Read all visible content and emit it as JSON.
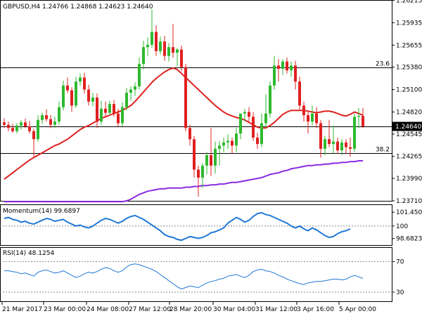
{
  "chart_data": [
    {
      "type": "candlestick",
      "title": "GBPUSD,H4 1.24766 1.24868 1.24623 1.24640",
      "ylim": [
        1.2371,
        1.2621
      ],
      "y_ticks": [
        "1.26215",
        "1.25935",
        "1.25655",
        "1.25380",
        "1.25100",
        "1.24820",
        "1.24545",
        "1.24265",
        "1.23990",
        "1.23710"
      ],
      "y_tick_values": [
        1.26215,
        1.25935,
        1.25655,
        1.2538,
        1.251,
        1.2482,
        1.24545,
        1.24265,
        1.2399,
        1.2371
      ],
      "x_ticks": [
        "21 Mar 2017",
        "23 Mar 00:00",
        "24 Mar 08:00",
        "27 Mar 12:00",
        "28 Mar 20:00",
        "30 Mar 04:00",
        "31 Mar 12:00",
        "3 Apr 16:00",
        "5 Apr 00:00"
      ],
      "current_price_label": "1.24640",
      "current_price": 1.2464,
      "horizontal_lines": [
        {
          "label": "23.6",
          "value": 1.2538
        },
        {
          "label": "",
          "value": 1.2464
        },
        {
          "label": "38.2",
          "value": 1.2431
        }
      ],
      "candles": [
        [
          1.2469,
          1.2474,
          1.2462,
          1.2466
        ],
        [
          1.2466,
          1.247,
          1.2458,
          1.2462
        ],
        [
          1.2462,
          1.2467,
          1.2456,
          1.2458
        ],
        [
          1.2458,
          1.2468,
          1.2455,
          1.2465
        ],
        [
          1.2465,
          1.2472,
          1.246,
          1.2469
        ],
        [
          1.2469,
          1.2474,
          1.2462,
          1.2464
        ],
        [
          1.2464,
          1.2471,
          1.2455,
          1.2458
        ],
        [
          1.2458,
          1.2461,
          1.2426,
          1.2448
        ],
        [
          1.2448,
          1.2478,
          1.2445,
          1.2472
        ],
        [
          1.2472,
          1.2481,
          1.2467,
          1.2478
        ],
        [
          1.2478,
          1.2485,
          1.247,
          1.2473
        ],
        [
          1.2473,
          1.2478,
          1.2462,
          1.2466
        ],
        [
          1.2466,
          1.2476,
          1.2462,
          1.247
        ],
        [
          1.247,
          1.2495,
          1.2466,
          1.2488
        ],
        [
          1.2488,
          1.2521,
          1.2484,
          1.2515
        ],
        [
          1.2515,
          1.2525,
          1.2506,
          1.2509
        ],
        [
          1.2509,
          1.2513,
          1.2482,
          1.249
        ],
        [
          1.249,
          1.2526,
          1.2487,
          1.252
        ],
        [
          1.252,
          1.253,
          1.2515,
          1.2525
        ],
        [
          1.2525,
          1.2531,
          1.2505,
          1.251
        ],
        [
          1.251,
          1.2516,
          1.249,
          1.2495
        ],
        [
          1.2495,
          1.2506,
          1.2489,
          1.25
        ],
        [
          1.25,
          1.2505,
          1.2462,
          1.247
        ],
        [
          1.247,
          1.2496,
          1.2466,
          1.2486
        ],
        [
          1.2486,
          1.2495,
          1.2476,
          1.2481
        ],
        [
          1.2481,
          1.2496,
          1.2478,
          1.2492
        ],
        [
          1.2492,
          1.2497,
          1.2476,
          1.248
        ],
        [
          1.248,
          1.2486,
          1.2464,
          1.2468
        ],
        [
          1.2468,
          1.2494,
          1.2464,
          1.2488
        ],
        [
          1.2488,
          1.2512,
          1.2484,
          1.2506
        ],
        [
          1.2506,
          1.2514,
          1.2496,
          1.251
        ],
        [
          1.251,
          1.2519,
          1.2502,
          1.2514
        ],
        [
          1.2514,
          1.255,
          1.251,
          1.2542
        ],
        [
          1.2542,
          1.2571,
          1.2535,
          1.2563
        ],
        [
          1.2563,
          1.2575,
          1.2552,
          1.2566
        ],
        [
          1.2566,
          1.261,
          1.2562,
          1.2582
        ],
        [
          1.2582,
          1.259,
          1.2552,
          1.2558
        ],
        [
          1.2558,
          1.2576,
          1.2554,
          1.257
        ],
        [
          1.257,
          1.2577,
          1.2546,
          1.2552
        ],
        [
          1.2552,
          1.2568,
          1.2545,
          1.2563
        ],
        [
          1.2563,
          1.2592,
          1.255,
          1.2556
        ],
        [
          1.2556,
          1.2562,
          1.2539,
          1.256
        ],
        [
          1.256,
          1.2565,
          1.2533,
          1.2538
        ],
        [
          1.2538,
          1.2542,
          1.2458,
          1.2462
        ],
        [
          1.2462,
          1.2466,
          1.244,
          1.2448
        ],
        [
          1.2448,
          1.2452,
          1.24,
          1.241
        ],
        [
          1.241,
          1.2415,
          1.2376,
          1.24
        ],
        [
          1.24,
          1.2418,
          1.2387,
          1.2415
        ],
        [
          1.2415,
          1.2432,
          1.2404,
          1.2428
        ],
        [
          1.2428,
          1.2462,
          1.2402,
          1.2415
        ],
        [
          1.2415,
          1.2445,
          1.2405,
          1.2436
        ],
        [
          1.2436,
          1.2446,
          1.2415,
          1.244
        ],
        [
          1.244,
          1.245,
          1.2432,
          1.2444
        ],
        [
          1.2444,
          1.2454,
          1.2436,
          1.2446
        ],
        [
          1.2446,
          1.245,
          1.243,
          1.244
        ],
        [
          1.244,
          1.2462,
          1.2432,
          1.2455
        ],
        [
          1.2455,
          1.248,
          1.2448,
          1.248
        ],
        [
          1.248,
          1.2486,
          1.247,
          1.2482
        ],
        [
          1.2482,
          1.2488,
          1.247,
          1.2476
        ],
        [
          1.2476,
          1.2482,
          1.2446,
          1.245
        ],
        [
          1.245,
          1.2456,
          1.2436,
          1.2442
        ],
        [
          1.2442,
          1.248,
          1.2438,
          1.2468
        ],
        [
          1.2468,
          1.2504,
          1.2462,
          1.248
        ],
        [
          1.248,
          1.252,
          1.2475,
          1.2515
        ],
        [
          1.2515,
          1.2552,
          1.251,
          1.254
        ],
        [
          1.254,
          1.2548,
          1.252,
          1.2536
        ],
        [
          1.2536,
          1.2548,
          1.2528,
          1.2545
        ],
        [
          1.2545,
          1.255,
          1.253,
          1.2534
        ],
        [
          1.2534,
          1.2545,
          1.2526,
          1.254
        ],
        [
          1.254,
          1.2546,
          1.251,
          1.252
        ],
        [
          1.252,
          1.2526,
          1.2485,
          1.249
        ],
        [
          1.249,
          1.2495,
          1.247,
          1.2478
        ],
        [
          1.2478,
          1.2482,
          1.2455,
          1.247
        ],
        [
          1.247,
          1.249,
          1.2465,
          1.248
        ],
        [
          1.248,
          1.2488,
          1.2462,
          1.2468
        ],
        [
          1.2468,
          1.2472,
          1.2425,
          1.2436
        ],
        [
          1.2436,
          1.2452,
          1.2428,
          1.2448
        ],
        [
          1.2448,
          1.2472,
          1.2438,
          1.2442
        ],
        [
          1.2442,
          1.2465,
          1.243,
          1.2445
        ],
        [
          1.2445,
          1.245,
          1.243,
          1.2434
        ],
        [
          1.2434,
          1.2448,
          1.2428,
          1.2444
        ],
        [
          1.2444,
          1.2448,
          1.243,
          1.2438
        ],
        [
          1.2438,
          1.245,
          1.2426,
          1.2436
        ],
        [
          1.2436,
          1.248,
          1.2432,
          1.2476
        ],
        [
          1.2476,
          1.2487,
          1.2462,
          1.2477
        ],
        [
          1.2477,
          1.2487,
          1.2462,
          1.2464
        ]
      ],
      "series": [
        {
          "name": "",
          "color": "#e02020",
          "values": [
            1.2398,
            1.2402,
            1.2406,
            1.241,
            1.2414,
            1.2418,
            1.2422,
            1.2425,
            1.2428,
            1.2431,
            1.2434,
            1.2437,
            1.244,
            1.2442,
            1.2445,
            1.2448,
            1.2452,
            1.2456,
            1.246,
            1.2463,
            1.2465,
            1.2468,
            1.2471,
            1.2474,
            1.2476,
            1.2478,
            1.248,
            1.2482,
            1.2484,
            1.2487,
            1.249,
            1.2495,
            1.2501,
            1.2507,
            1.2513,
            1.2519,
            1.2524,
            1.2528,
            1.2532,
            1.2535,
            1.2537,
            1.2535,
            1.253,
            1.2525,
            1.252,
            1.2515,
            1.251,
            1.2505,
            1.25,
            1.2495,
            1.249,
            1.2486,
            1.2482,
            1.2479,
            1.2477,
            1.2475,
            1.2474,
            1.2472,
            1.2469,
            1.2466,
            1.2463,
            1.2462,
            1.2462,
            1.2465,
            1.2469,
            1.2474,
            1.2479,
            1.2482,
            1.2484,
            1.2484,
            1.2484,
            1.2484,
            1.2483,
            1.2482,
            1.2481,
            1.2482,
            1.2483,
            1.2483,
            1.2482,
            1.248,
            1.2478,
            1.2477,
            1.2479,
            1.2482,
            1.248,
            1.2478
          ]
        },
        {
          "name": "",
          "color": "#8a2be2",
          "values": [
            1.237,
            1.237,
            1.237,
            1.237,
            1.237,
            1.237,
            1.237,
            1.237,
            1.237,
            1.237,
            1.237,
            1.237,
            1.237,
            1.237,
            1.237,
            1.237,
            1.237,
            1.237,
            1.237,
            1.237,
            1.237,
            1.237,
            1.237,
            1.237,
            1.237,
            1.237,
            1.237,
            1.237,
            1.237,
            1.2371,
            1.2373,
            1.2376,
            1.2379,
            1.2381,
            1.2383,
            1.2384,
            1.2385,
            1.2386,
            1.2386,
            1.2387,
            1.2387,
            1.2387,
            1.2387,
            1.2388,
            1.2388,
            1.2389,
            1.2389,
            1.239,
            1.239,
            1.2391,
            1.2391,
            1.2392,
            1.2392,
            1.2393,
            1.2394,
            1.2394,
            1.2395,
            1.2396,
            1.2397,
            1.2398,
            1.2399,
            1.24,
            1.2402,
            1.2404,
            1.2405,
            1.2406,
            1.2408,
            1.2409,
            1.2411,
            1.2412,
            1.2413,
            1.2414,
            1.2415,
            1.2415,
            1.2416,
            1.2416,
            1.2417,
            1.2417,
            1.2418,
            1.2418,
            1.2419,
            1.2419,
            1.242,
            1.242,
            1.2421,
            1.2421
          ]
        }
      ]
    },
    {
      "type": "line",
      "title": "Momentum(14) 99.6897",
      "ylim": [
        98.0,
        102.2
      ],
      "y_ticks": [
        "101.4501",
        "100",
        "98.6823"
      ],
      "y_tick_values": [
        101.4501,
        100.0,
        98.6823
      ],
      "reference_line": 100.0,
      "series": [
        {
          "name": "Momentum(14)",
          "color": "#1e78d6",
          "values": [
            100.8,
            100.9,
            100.7,
            100.6,
            100.4,
            100.5,
            100.3,
            100.2,
            100.4,
            100.6,
            100.8,
            100.7,
            100.5,
            100.6,
            100.7,
            100.4,
            100.2,
            100.0,
            100.1,
            99.9,
            99.8,
            100.0,
            100.3,
            100.6,
            100.8,
            100.7,
            100.5,
            100.3,
            100.5,
            100.8,
            101.0,
            101.1,
            100.9,
            100.7,
            100.4,
            100.1,
            99.8,
            99.5,
            99.1,
            98.9,
            98.8,
            98.6,
            98.5,
            98.7,
            98.9,
            98.8,
            98.7,
            98.8,
            99.0,
            99.3,
            99.4,
            99.6,
            99.8,
            100.3,
            100.6,
            100.9,
            100.7,
            100.4,
            100.6,
            101.0,
            101.3,
            101.4,
            101.2,
            101.1,
            100.9,
            100.7,
            100.5,
            100.3,
            100.0,
            99.8,
            100.0,
            99.7,
            99.5,
            99.8,
            99.6,
            99.3,
            99.0,
            98.8,
            98.9,
            99.2,
            99.4,
            99.5,
            99.7
          ]
        }
      ]
    },
    {
      "type": "line",
      "title": "RSI(14) 48.1254",
      "ylim": [
        18,
        88
      ],
      "y_ticks": [
        "70",
        "30"
      ],
      "y_tick_values": [
        70,
        30
      ],
      "reference_lines": [
        70,
        30
      ],
      "series": [
        {
          "name": "RSI(14)",
          "color": "#1e78d6",
          "values": [
            58,
            58,
            57,
            56,
            54,
            55,
            53,
            51,
            56,
            58,
            59,
            57,
            55,
            56,
            58,
            55,
            52,
            49,
            51,
            54,
            56,
            55,
            57,
            60,
            62,
            61,
            58,
            56,
            58,
            63,
            66,
            67,
            66,
            64,
            62,
            60,
            57,
            53,
            49,
            45,
            41,
            37,
            34,
            36,
            38,
            37,
            36,
            39,
            42,
            44,
            45,
            47,
            48,
            51,
            52,
            53,
            51,
            49,
            52,
            57,
            59,
            60,
            58,
            57,
            55,
            52,
            50,
            47,
            45,
            43,
            41,
            40,
            42,
            43,
            44,
            44,
            45,
            46,
            47,
            47,
            46,
            47,
            50,
            52,
            50,
            48
          ]
        }
      ]
    }
  ]
}
